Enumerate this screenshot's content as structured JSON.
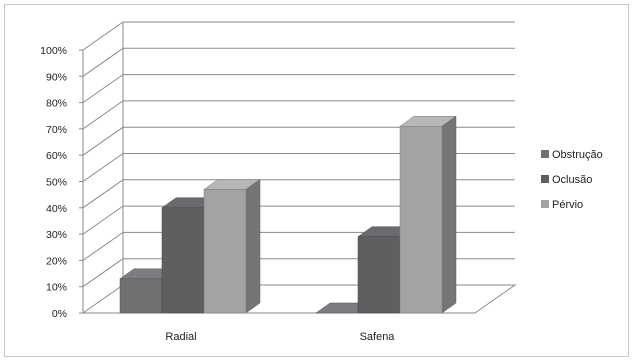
{
  "chart_data": {
    "type": "bar",
    "title": "",
    "xlabel": "",
    "ylabel": "",
    "categories": [
      "Radial",
      "Safena"
    ],
    "series": [
      {
        "name": "Obstrução",
        "values": [
          13,
          0
        ],
        "color": "#707073"
      },
      {
        "name": "Oclusão",
        "values": [
          40,
          29
        ],
        "color": "#5e5f61"
      },
      {
        "name": "Pérvio",
        "values": [
          47,
          71
        ],
        "color": "#a3a3a5"
      }
    ],
    "ylim": [
      0,
      100
    ],
    "y_ticks": [
      "0%",
      "10%",
      "20%",
      "30%",
      "40%",
      "50%",
      "60%",
      "70%",
      "80%",
      "90%",
      "100%"
    ],
    "grid": true,
    "legend_position": "right",
    "style": "3d-clustered-column"
  }
}
